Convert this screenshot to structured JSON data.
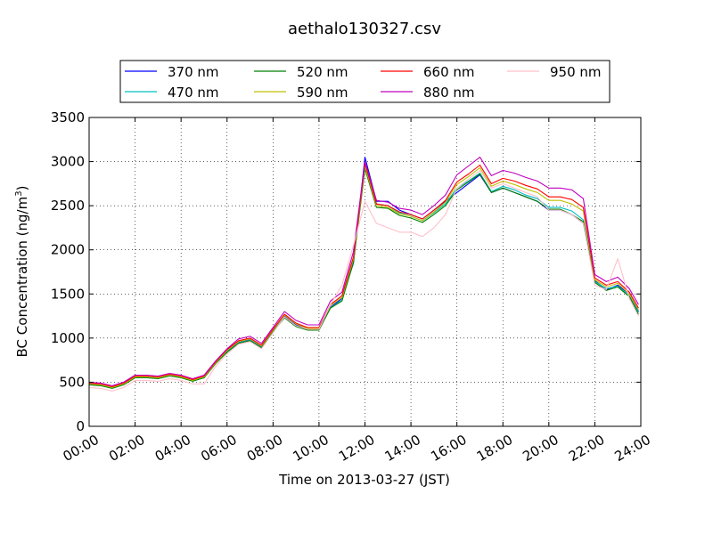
{
  "chart_data": {
    "type": "line",
    "title": "aethalo130327.csv",
    "xlabel": "Time on 2013-03-27 (JST)",
    "ylabel": "BC Concentration (ng/m",
    "ylabel_sup": "3",
    "ylabel_close": ")",
    "x_unit": "hour",
    "xlim": [
      0,
      24
    ],
    "ylim": [
      0,
      3500
    ],
    "x_ticks": [
      0,
      2,
      4,
      6,
      8,
      10,
      12,
      14,
      16,
      18,
      20,
      22,
      24
    ],
    "x_tick_labels": [
      "00:00",
      "02:00",
      "04:00",
      "06:00",
      "08:00",
      "10:00",
      "12:00",
      "14:00",
      "16:00",
      "18:00",
      "20:00",
      "22:00",
      "24:00"
    ],
    "y_ticks": [
      0,
      500,
      1000,
      1500,
      2000,
      2500,
      3000,
      3500
    ],
    "y_tick_labels": [
      "0",
      "500",
      "1000",
      "1500",
      "2000",
      "2500",
      "3000",
      "3500"
    ],
    "grid": true,
    "legend_position": "top, above plot",
    "x": [
      0,
      0.5,
      1,
      1.5,
      2,
      2.5,
      3,
      3.5,
      4,
      4.5,
      5,
      5.5,
      6,
      6.5,
      7,
      7.5,
      8,
      8.5,
      9,
      9.5,
      10,
      10.5,
      11,
      11.5,
      12,
      12.5,
      13,
      13.5,
      14,
      14.5,
      15,
      15.5,
      16,
      16.5,
      17,
      17.5,
      18,
      18.5,
      19,
      19.5,
      20,
      20.5,
      21,
      21.5,
      22,
      22.5,
      23,
      23.5,
      23.9
    ],
    "series": [
      {
        "name": "370 nm",
        "color": "#0000ff",
        "values": [
          480,
          470,
          440,
          480,
          560,
          560,
          550,
          580,
          560,
          520,
          560,
          720,
          850,
          950,
          980,
          900,
          1080,
          1250,
          1150,
          1100,
          1100,
          1350,
          1450,
          1850,
          3050,
          2550,
          2550,
          2450,
          2400,
          2350,
          2450,
          2550,
          2650,
          2750,
          2850,
          2650,
          2700,
          2650,
          2600,
          2550,
          2450,
          2450,
          2400,
          2300,
          1650,
          1550,
          1600,
          1500,
          1300
        ]
      },
      {
        "name": "470 nm",
        "color": "#00bfbf",
        "values": [
          475,
          465,
          435,
          475,
          555,
          555,
          545,
          575,
          555,
          515,
          555,
          715,
          845,
          945,
          975,
          895,
          1075,
          1240,
          1140,
          1095,
          1095,
          1345,
          1430,
          1870,
          2980,
          2520,
          2500,
          2420,
          2380,
          2330,
          2420,
          2520,
          2700,
          2780,
          2870,
          2660,
          2720,
          2680,
          2620,
          2580,
          2480,
          2480,
          2440,
          2340,
          1640,
          1560,
          1590,
          1480,
          1290
        ]
      },
      {
        "name": "520 nm",
        "color": "#008000",
        "values": [
          470,
          460,
          430,
          470,
          550,
          550,
          540,
          570,
          550,
          510,
          550,
          710,
          840,
          940,
          970,
          890,
          1070,
          1230,
          1130,
          1090,
          1090,
          1340,
          1420,
          1860,
          2920,
          2480,
          2470,
          2390,
          2360,
          2310,
          2400,
          2500,
          2680,
          2770,
          2860,
          2650,
          2700,
          2650,
          2600,
          2550,
          2460,
          2460,
          2400,
          2320,
          1630,
          1540,
          1580,
          1470,
          1270
        ]
      },
      {
        "name": "590 nm",
        "color": "#bfbf00",
        "values": [
          480,
          470,
          440,
          480,
          560,
          560,
          550,
          580,
          560,
          520,
          560,
          720,
          860,
          960,
          990,
          910,
          1090,
          1260,
          1160,
          1110,
          1110,
          1370,
          1460,
          1900,
          2950,
          2500,
          2480,
          2410,
          2380,
          2330,
          2430,
          2540,
          2740,
          2830,
          2930,
          2720,
          2780,
          2740,
          2690,
          2650,
          2560,
          2560,
          2520,
          2440,
          1660,
          1580,
          1620,
          1500,
          1320
        ]
      },
      {
        "name": "660 nm",
        "color": "#ff0000",
        "values": [
          490,
          480,
          450,
          490,
          570,
          570,
          560,
          590,
          570,
          530,
          570,
          730,
          870,
          970,
          1000,
          920,
          1100,
          1270,
          1170,
          1120,
          1120,
          1380,
          1480,
          1920,
          2980,
          2520,
          2500,
          2430,
          2400,
          2350,
          2450,
          2560,
          2770,
          2860,
          2960,
          2750,
          2810,
          2780,
          2730,
          2690,
          2600,
          2600,
          2570,
          2480,
          1680,
          1600,
          1640,
          1520,
          1340
        ]
      },
      {
        "name": "880 nm",
        "color": "#bf00bf",
        "values": [
          500,
          490,
          460,
          500,
          580,
          580,
          570,
          600,
          580,
          540,
          580,
          740,
          880,
          990,
          1020,
          940,
          1120,
          1300,
          1200,
          1150,
          1150,
          1420,
          1520,
          1980,
          3000,
          2560,
          2540,
          2470,
          2450,
          2400,
          2500,
          2620,
          2850,
          2950,
          3050,
          2840,
          2900,
          2870,
          2820,
          2780,
          2700,
          2700,
          2680,
          2580,
          1720,
          1640,
          1690,
          1560,
          1380
        ]
      },
      {
        "name": "950 nm",
        "color": "#ffc0cb",
        "values": [
          440,
          430,
          400,
          440,
          520,
          520,
          510,
          540,
          520,
          480,
          480,
          680,
          820,
          930,
          960,
          880,
          1060,
          1240,
          1140,
          1100,
          1100,
          1380,
          1600,
          2050,
          2550,
          2300,
          2250,
          2200,
          2200,
          2150,
          2250,
          2400,
          2700,
          2800,
          2900,
          2700,
          2750,
          2700,
          2650,
          2600,
          2450,
          2450,
          2400,
          2300,
          1600,
          1550,
          1900,
          1450,
          1250
        ]
      }
    ]
  }
}
